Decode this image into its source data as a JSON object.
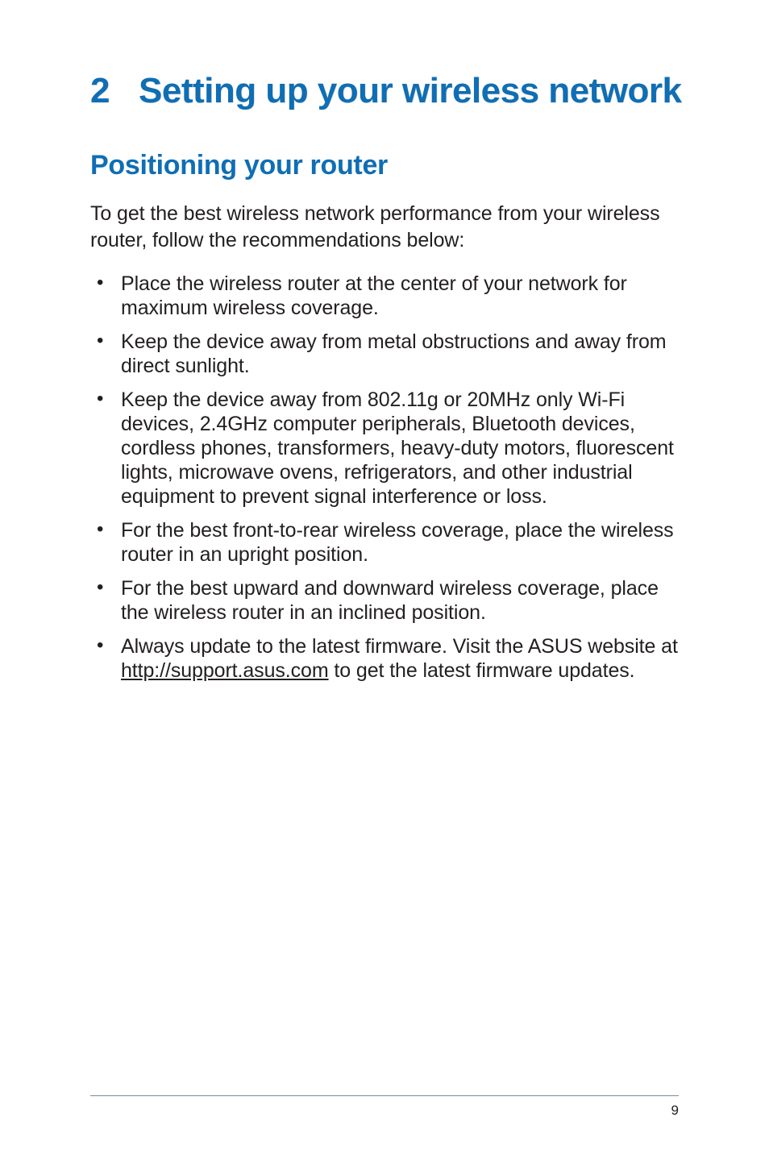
{
  "chapter": {
    "number": "2",
    "title": "Setting up your wireless network",
    "title_color": "#0f6eb4",
    "title_fontsize": 44,
    "title_fontweight": 800
  },
  "section": {
    "title": "Positioning your router",
    "title_color": "#0f6eb4",
    "title_fontsize": 34,
    "title_fontweight": 700
  },
  "intro": "To get the best wireless network performance from your wireless router, follow the recommendations below:",
  "bullets": [
    {
      "text": "Place the wireless router at the center of your network for maximum wireless coverage."
    },
    {
      "text": "Keep the device away from metal obstructions and away from direct sunlight."
    },
    {
      "text": "Keep the device away from 802.11g or 20MHz only Wi-Fi devices, 2.4GHz computer peripherals, Bluetooth devices, cordless phones, transformers, heavy-duty motors, fluorescent lights, microwave ovens, refrigerators, and other industrial equipment to prevent signal interference or loss."
    },
    {
      "text": "For the best front-to-rear wireless coverage, place the wireless router in an upright position."
    },
    {
      "text": "For the best upward and downward wireless coverage, place the wireless router in an inclined position."
    },
    {
      "pre": "Always update to the latest firmware. Visit the ASUS website at ",
      "link": "http://support.asus.com",
      "post": " to get the latest firmware updates."
    }
  ],
  "body_fontsize": 25,
  "body_color": "#231f20",
  "page_number": "9",
  "rule_color": "#7c8a97",
  "background_color": "#ffffff"
}
